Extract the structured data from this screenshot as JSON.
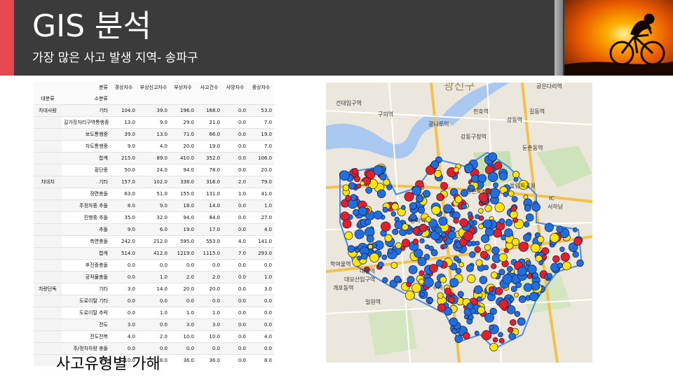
{
  "header": {
    "title": "GIS 분석",
    "subtitle": "가장 많은 사고 발생 지역- 송파구"
  },
  "colors": {
    "header_bg": "#3b3b3b",
    "accent": "#e8474f",
    "dot_blue": "#1f6fe0",
    "dot_red": "#e0202a",
    "dot_yellow": "#ffe600"
  },
  "table": {
    "header_row1": [
      "",
      "분류",
      "경상자수",
      "부상신고자수",
      "부상자수",
      "사고건수",
      "사망자수",
      "중상자수"
    ],
    "header_row2": [
      "대분류",
      "소분류",
      "",
      "",
      "",
      "",
      "",
      ""
    ],
    "rows": [
      {
        "cat": "차대사람",
        "sub": "기타",
        "v": [
          "104.0",
          "39.0",
          "196.0",
          "168.0",
          "0.0",
          "53.0"
        ]
      },
      {
        "cat": "",
        "sub": "길가장자리구역통행중",
        "v": [
          "13.0",
          "9.0",
          "29.0",
          "21.0",
          "0.0",
          "7.0"
        ]
      },
      {
        "cat": "",
        "sub": "보도통행중",
        "v": [
          "39.0",
          "13.0",
          "71.0",
          "66.0",
          "0.0",
          "19.0"
        ]
      },
      {
        "cat": "",
        "sub": "차도통행중",
        "v": [
          "9.0",
          "4.0",
          "20.0",
          "19.0",
          "0.0",
          "7.0"
        ]
      },
      {
        "cat": "",
        "sub": "합계",
        "v": [
          "215.0",
          "89.0",
          "410.0",
          "352.0",
          "0.0",
          "106.0"
        ]
      },
      {
        "cat": "",
        "sub": "횡단중",
        "v": [
          "50.0",
          "24.0",
          "94.0",
          "78.0",
          "0.0",
          "20.0"
        ]
      },
      {
        "cat": "차대차",
        "sub": "기타",
        "v": [
          "157.0",
          "102.0",
          "338.0",
          "316.0",
          "2.0",
          "79.0"
        ]
      },
      {
        "cat": "",
        "sub": "정면충돌",
        "v": [
          "63.0",
          "51.0",
          "155.0",
          "131.0",
          "1.0",
          "41.0"
        ]
      },
      {
        "cat": "",
        "sub": "주정차중 추돌",
        "v": [
          "8.0",
          "9.0",
          "18.0",
          "14.0",
          "0.0",
          "1.0"
        ]
      },
      {
        "cat": "",
        "sub": "진행중 추돌",
        "v": [
          "35.0",
          "32.0",
          "94.0",
          "84.0",
          "0.0",
          "27.0"
        ]
      },
      {
        "cat": "",
        "sub": "추돌",
        "v": [
          "9.0",
          "6.0",
          "19.0",
          "17.0",
          "0.0",
          "4.0"
        ]
      },
      {
        "cat": "",
        "sub": "측면충돌",
        "v": [
          "242.0",
          "212.0",
          "595.0",
          "553.0",
          "4.0",
          "141.0"
        ]
      },
      {
        "cat": "",
        "sub": "합계",
        "v": [
          "514.0",
          "412.0",
          "1219.0",
          "1115.0",
          "7.0",
          "293.0"
        ]
      },
      {
        "cat": "",
        "sub": "후진중충돌",
        "v": [
          "0.0",
          "0.0",
          "0.0",
          "0.0",
          "0.0",
          "0.0"
        ]
      },
      {
        "cat": "",
        "sub": "공작물충돌",
        "v": [
          "0.0",
          "1.0",
          "2.0",
          "2.0",
          "0.0",
          "1.0"
        ]
      },
      {
        "cat": "차량단독",
        "sub": "기타",
        "v": [
          "3.0",
          "14.0",
          "20.0",
          "20.0",
          "0.0",
          "3.0"
        ]
      },
      {
        "cat": "",
        "sub": "도로이탈 기타",
        "v": [
          "0.0",
          "0.0",
          "0.0",
          "0.0",
          "0.0",
          "0.0"
        ]
      },
      {
        "cat": "",
        "sub": "도로이탈 추락",
        "v": [
          "0.0",
          "1.0",
          "1.0",
          "1.0",
          "0.0",
          "0.0"
        ]
      },
      {
        "cat": "",
        "sub": "전도",
        "v": [
          "3.0",
          "0.0",
          "3.0",
          "3.0",
          "0.0",
          "0.0"
        ]
      },
      {
        "cat": "",
        "sub": "전도전복",
        "v": [
          "4.0",
          "2.0",
          "10.0",
          "10.0",
          "0.0",
          "4.0"
        ]
      },
      {
        "cat": "",
        "sub": "주/정차차량 충돌",
        "v": [
          "0.0",
          "0.0",
          "0.0",
          "0.0",
          "0.0",
          "0.0"
        ]
      },
      {
        "cat": "",
        "sub": "합계",
        "v": [
          "10.0",
          "18.0",
          "36.0",
          "36.0",
          "0.0",
          "8.0"
        ]
      }
    ]
  },
  "caption": "사고유형별 가해",
  "map": {
    "pois": [
      "광진구",
      "건대입구역",
      "구의역",
      "광나루역",
      "천호역",
      "길동역",
      "강동역",
      "둔촌동역",
      "강동구청역",
      "몽촌토성역",
      "올림픽공원",
      "서하남",
      "IC",
      "학여울역",
      "대청역",
      "대모산입구역",
      "개포동역",
      "수서",
      "일원역",
      "굽은다리역",
      "송파역"
    ]
  }
}
